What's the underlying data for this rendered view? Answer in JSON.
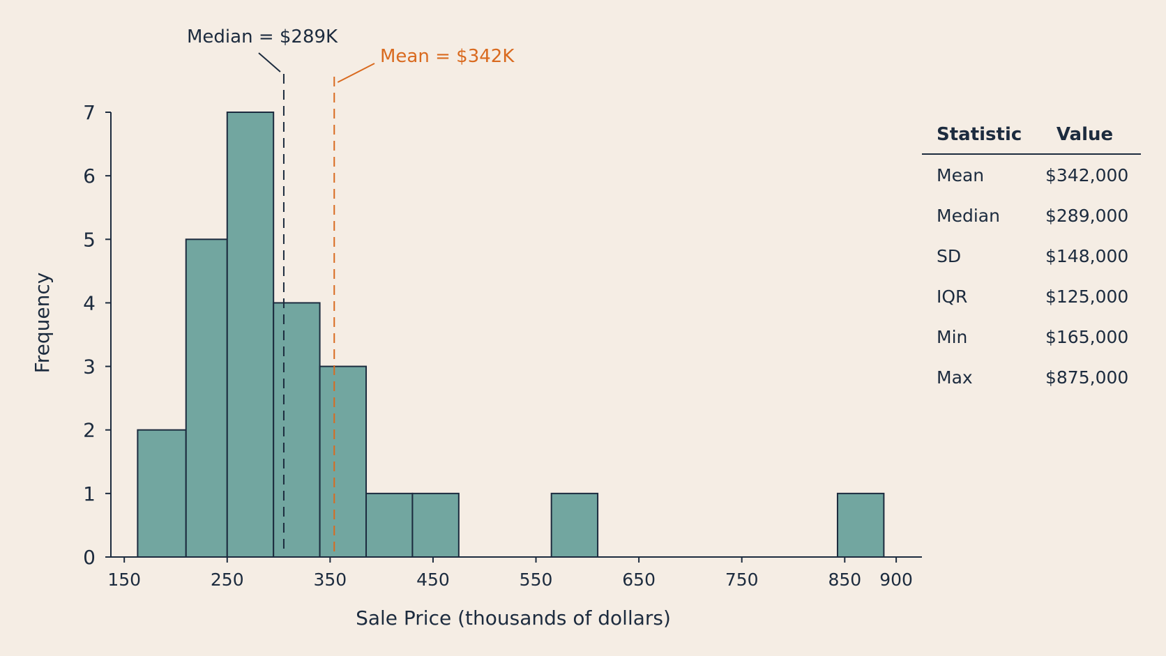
{
  "chart_data": {
    "type": "bar",
    "xlabel": "Sale Price (thousands of dollars)",
    "ylabel": "Frequency",
    "xlim": [
      137,
      925
    ],
    "ylim": [
      0,
      7
    ],
    "x_ticks": [
      150,
      250,
      350,
      450,
      550,
      650,
      750,
      850,
      900
    ],
    "y_ticks": [
      0,
      1,
      2,
      3,
      4,
      5,
      6,
      7
    ],
    "bins": [
      {
        "start": 163,
        "end": 210,
        "count": 2
      },
      {
        "start": 210,
        "end": 250,
        "count": 5
      },
      {
        "start": 250,
        "end": 295,
        "count": 7
      },
      {
        "start": 295,
        "end": 340,
        "count": 4
      },
      {
        "start": 340,
        "end": 385,
        "count": 3
      },
      {
        "start": 385,
        "end": 430,
        "count": 1
      },
      {
        "start": 430,
        "end": 475,
        "count": 1
      },
      {
        "start": 565,
        "end": 610,
        "count": 1
      },
      {
        "start": 843,
        "end": 888,
        "count": 1
      }
    ],
    "annotations": [
      {
        "label": "Median = $289K",
        "x": 305,
        "color": "#1c2b3e"
      },
      {
        "label": "Mean = $342K",
        "x": 354,
        "color": "#d96a1f"
      }
    ],
    "bar_color": "#72a6a0",
    "grid": false
  },
  "stats_table": {
    "headers": [
      "Statistic",
      "Value"
    ],
    "rows": [
      {
        "stat": "Mean",
        "value": "$342,000"
      },
      {
        "stat": "Median",
        "value": "$289,000"
      },
      {
        "stat": "SD",
        "value": "$148,000"
      },
      {
        "stat": "IQR",
        "value": "$125,000"
      },
      {
        "stat": "Min",
        "value": "$165,000"
      },
      {
        "stat": "Max",
        "value": "$875,000"
      }
    ]
  }
}
